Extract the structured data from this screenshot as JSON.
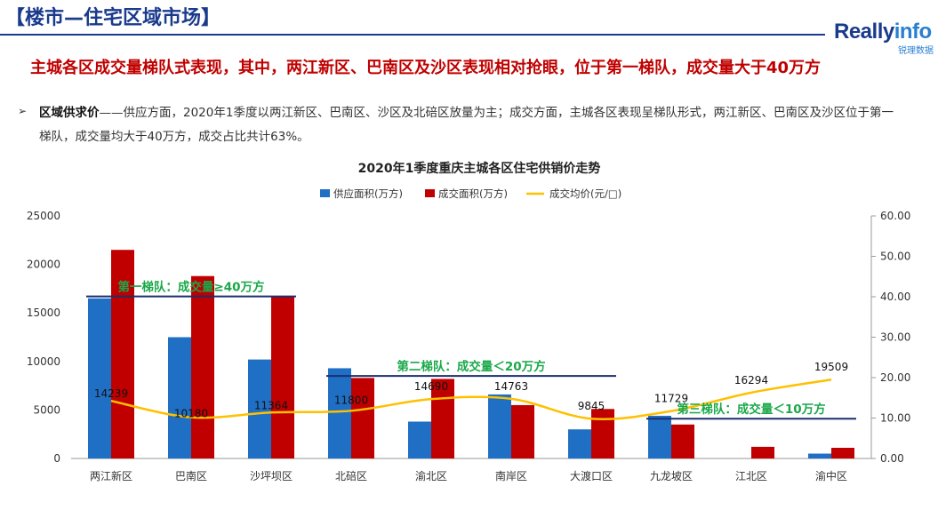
{
  "header": {
    "title": "【楼市—住宅区域市场】"
  },
  "logo": {
    "brand_main": "Really",
    "brand_accent": "info",
    "brand_sub": "锐理数据"
  },
  "headline": "主城各区成交量梯队式表现，其中，两江新区、巴南区及沙区表现相对抢眼，位于第一梯队，成交量大于40万方",
  "bullet": {
    "marker": "➢",
    "label": "区域供求价",
    "text": "——供应方面，2020年1季度以两江新区、巴南区、沙区及北碚区放量为主；成交方面，主城各区表现呈梯队形式，两江新区、巴南区及沙区位于第一梯队，成交量均大于40万方，成交占比共计63%。"
  },
  "colors": {
    "supply": "#1f6fc5",
    "deal": "#c00000",
    "price": "#ffc000",
    "tier_line": "#1a2e6e",
    "tier_text": "#1aa84a"
  },
  "chart_data": {
    "type": "bar",
    "title": "2020年1季度重庆主城各区住宅供销价走势",
    "categories": [
      "两江新区",
      "巴南区",
      "沙坪坝区",
      "北碚区",
      "渝北区",
      "南岸区",
      "大渡口区",
      "九龙坡区",
      "江北区",
      "渝中区"
    ],
    "series": [
      {
        "name": "供应面积(万方)",
        "type": "bar",
        "axis": "left",
        "values": [
          16500,
          12500,
          10200,
          9300,
          3800,
          6600,
          3000,
          4400,
          0,
          500
        ]
      },
      {
        "name": "成交面积(万方)",
        "type": "bar",
        "axis": "left",
        "values": [
          21500,
          18800,
          16700,
          8300,
          8200,
          5500,
          5100,
          3500,
          1200,
          1100
        ]
      },
      {
        "name": "成交均价(元/㎡)",
        "type": "line",
        "axis": "right",
        "values": [
          14239,
          10180,
          11364,
          11800,
          14690,
          14763,
          9845,
          11729,
          16294,
          19509
        ],
        "labels": [
          "14239",
          "10180",
          "11364",
          "11800",
          "14690",
          "14763",
          "9845",
          "11729",
          "16294",
          "19509"
        ]
      }
    ],
    "legend_labels": [
      "供应面积(万方)",
      "成交面积(万方)",
      "成交均价(元/□)"
    ],
    "legend_position": "top",
    "y_left": {
      "min": 0,
      "max": 25000,
      "ticks": [
        "0",
        "5000",
        "10000",
        "15000",
        "20000",
        "25000"
      ]
    },
    "y_right": {
      "min": 0,
      "max": 60,
      "ticks": [
        "0.00",
        "10.00",
        "20.00",
        "30.00",
        "40.00",
        "50.00",
        "60.00"
      ]
    },
    "grid": false,
    "annotations": [
      {
        "text": "第一梯队：成交量≥40万方",
        "from_index": 0,
        "to_index": 2,
        "level": 16700
      },
      {
        "text": "第二梯队：成交量＜20万方",
        "from_index": 3,
        "to_index": 6,
        "level": 8500
      },
      {
        "text": "第三梯队：成交量＜10万方",
        "from_index": 7,
        "to_index": 9,
        "level": 4100
      }
    ]
  }
}
